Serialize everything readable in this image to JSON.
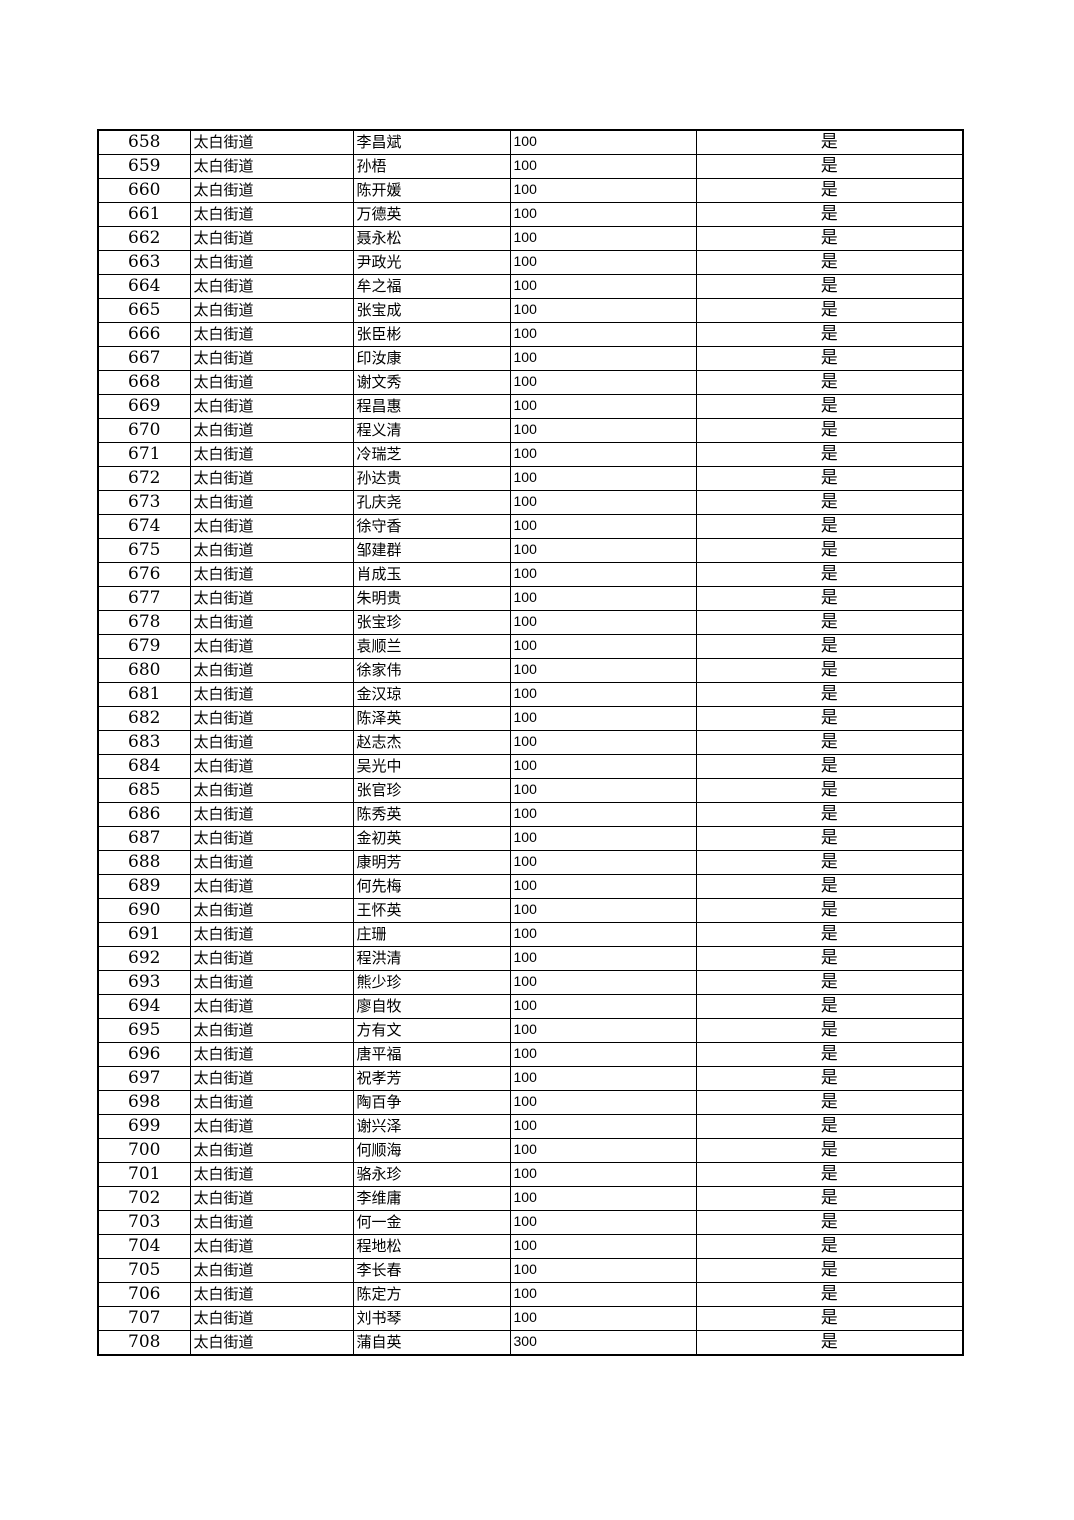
{
  "table": {
    "rows": [
      {
        "no": "658",
        "street": "太白街道",
        "name": "李昌斌",
        "amount": "100",
        "status": "是"
      },
      {
        "no": "659",
        "street": "太白街道",
        "name": "孙梧",
        "amount": "100",
        "status": "是"
      },
      {
        "no": "660",
        "street": "太白街道",
        "name": "陈开媛",
        "amount": "100",
        "status": "是"
      },
      {
        "no": "661",
        "street": "太白街道",
        "name": "万德英",
        "amount": "100",
        "status": "是"
      },
      {
        "no": "662",
        "street": "太白街道",
        "name": "聂永松",
        "amount": "100",
        "status": "是"
      },
      {
        "no": "663",
        "street": "太白街道",
        "name": "尹政光",
        "amount": "100",
        "status": "是"
      },
      {
        "no": "664",
        "street": "太白街道",
        "name": "牟之福",
        "amount": "100",
        "status": "是"
      },
      {
        "no": "665",
        "street": "太白街道",
        "name": "张宝成",
        "amount": "100",
        "status": "是"
      },
      {
        "no": "666",
        "street": "太白街道",
        "name": "张臣彬",
        "amount": "100",
        "status": "是"
      },
      {
        "no": "667",
        "street": "太白街道",
        "name": "印汝康",
        "amount": "100",
        "status": "是"
      },
      {
        "no": "668",
        "street": "太白街道",
        "name": "谢文秀",
        "amount": "100",
        "status": "是"
      },
      {
        "no": "669",
        "street": "太白街道",
        "name": "程昌惠",
        "amount": "100",
        "status": "是"
      },
      {
        "no": "670",
        "street": "太白街道",
        "name": "程义清",
        "amount": "100",
        "status": "是"
      },
      {
        "no": "671",
        "street": "太白街道",
        "name": "冷瑞芝",
        "amount": "100",
        "status": "是"
      },
      {
        "no": "672",
        "street": "太白街道",
        "name": "孙达贵",
        "amount": "100",
        "status": "是"
      },
      {
        "no": "673",
        "street": "太白街道",
        "name": "孔庆尧",
        "amount": "100",
        "status": "是"
      },
      {
        "no": "674",
        "street": "太白街道",
        "name": "徐守香",
        "amount": "100",
        "status": "是"
      },
      {
        "no": "675",
        "street": "太白街道",
        "name": "邹建群",
        "amount": "100",
        "status": "是"
      },
      {
        "no": "676",
        "street": "太白街道",
        "name": "肖成玉",
        "amount": "100",
        "status": "是"
      },
      {
        "no": "677",
        "street": "太白街道",
        "name": "朱明贵",
        "amount": "100",
        "status": "是"
      },
      {
        "no": "678",
        "street": "太白街道",
        "name": "张宝珍",
        "amount": "100",
        "status": "是"
      },
      {
        "no": "679",
        "street": "太白街道",
        "name": "袁顺兰",
        "amount": "100",
        "status": "是"
      },
      {
        "no": "680",
        "street": "太白街道",
        "name": "徐家伟",
        "amount": "100",
        "status": "是"
      },
      {
        "no": "681",
        "street": "太白街道",
        "name": "金汉琼",
        "amount": "100",
        "status": "是"
      },
      {
        "no": "682",
        "street": "太白街道",
        "name": "陈泽英",
        "amount": "100",
        "status": "是"
      },
      {
        "no": "683",
        "street": "太白街道",
        "name": "赵志杰",
        "amount": "100",
        "status": "是"
      },
      {
        "no": "684",
        "street": "太白街道",
        "name": "吴光中",
        "amount": "100",
        "status": "是"
      },
      {
        "no": "685",
        "street": "太白街道",
        "name": "张官珍",
        "amount": "100",
        "status": "是"
      },
      {
        "no": "686",
        "street": "太白街道",
        "name": "陈秀英",
        "amount": "100",
        "status": "是"
      },
      {
        "no": "687",
        "street": "太白街道",
        "name": "金初英",
        "amount": "100",
        "status": "是"
      },
      {
        "no": "688",
        "street": "太白街道",
        "name": "康明芳",
        "amount": "100",
        "status": "是"
      },
      {
        "no": "689",
        "street": "太白街道",
        "name": "何先梅",
        "amount": "100",
        "status": "是"
      },
      {
        "no": "690",
        "street": "太白街道",
        "name": "王怀英",
        "amount": "100",
        "status": "是"
      },
      {
        "no": "691",
        "street": "太白街道",
        "name": "庄珊",
        "amount": "100",
        "status": "是"
      },
      {
        "no": "692",
        "street": "太白街道",
        "name": "程洪清",
        "amount": "100",
        "status": "是"
      },
      {
        "no": "693",
        "street": "太白街道",
        "name": "熊少珍",
        "amount": "100",
        "status": "是"
      },
      {
        "no": "694",
        "street": "太白街道",
        "name": "廖自牧",
        "amount": "100",
        "status": "是"
      },
      {
        "no": "695",
        "street": "太白街道",
        "name": "方有文",
        "amount": "100",
        "status": "是"
      },
      {
        "no": "696",
        "street": "太白街道",
        "name": "唐平福",
        "amount": "100",
        "status": "是"
      },
      {
        "no": "697",
        "street": "太白街道",
        "name": "祝孝芳",
        "amount": "100",
        "status": "是"
      },
      {
        "no": "698",
        "street": "太白街道",
        "name": "陶百争",
        "amount": "100",
        "status": "是"
      },
      {
        "no": "699",
        "street": "太白街道",
        "name": "谢兴泽",
        "amount": "100",
        "status": "是"
      },
      {
        "no": "700",
        "street": "太白街道",
        "name": "何顺海",
        "amount": "100",
        "status": "是"
      },
      {
        "no": "701",
        "street": "太白街道",
        "name": "骆永珍",
        "amount": "100",
        "status": "是"
      },
      {
        "no": "702",
        "street": "太白街道",
        "name": "李维庸",
        "amount": "100",
        "status": "是"
      },
      {
        "no": "703",
        "street": "太白街道",
        "name": "何一金",
        "amount": "100",
        "status": "是"
      },
      {
        "no": "704",
        "street": "太白街道",
        "name": "程地松",
        "amount": "100",
        "status": "是"
      },
      {
        "no": "705",
        "street": "太白街道",
        "name": "李长春",
        "amount": "100",
        "status": "是"
      },
      {
        "no": "706",
        "street": "太白街道",
        "name": "陈定方",
        "amount": "100",
        "status": "是"
      },
      {
        "no": "707",
        "street": "太白街道",
        "name": "刘书琴",
        "amount": "100",
        "status": "是"
      },
      {
        "no": "708",
        "street": "太白街道",
        "name": "蒲自英",
        "amount": "300",
        "status": "是"
      }
    ]
  }
}
